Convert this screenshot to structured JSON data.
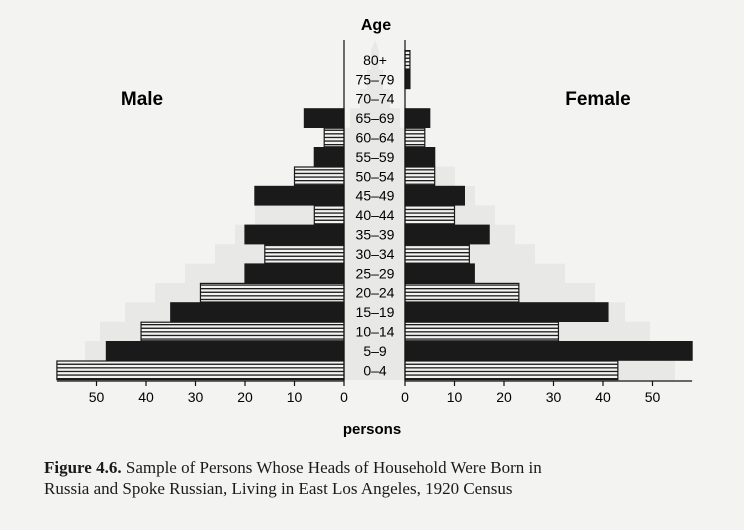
{
  "chart_data": {
    "type": "bar",
    "orientation": "horizontal",
    "subtype": "population-pyramid",
    "center_label": "Age",
    "left_group_label": "Male",
    "right_group_label": "Female",
    "xlabel": "persons",
    "categories": [
      "0–4",
      "5–9",
      "10–14",
      "15–19",
      "20–24",
      "25–29",
      "30–34",
      "35–39",
      "40–44",
      "45–49",
      "50–54",
      "55–59",
      "60–64",
      "65–69",
      "70–74",
      "75–79",
      "80+"
    ],
    "series": [
      {
        "name": "Male",
        "values": [
          58,
          48,
          41,
          35,
          29,
          20,
          16,
          20,
          6,
          18,
          10,
          6,
          4,
          8,
          0,
          0,
          0
        ]
      },
      {
        "name": "Female",
        "values": [
          43,
          58,
          31,
          41,
          23,
          14,
          13,
          17,
          10,
          12,
          6,
          6,
          4,
          5,
          0,
          1,
          1
        ]
      }
    ],
    "bar_fill_pattern": [
      "striped",
      "solid",
      "striped",
      "solid",
      "striped",
      "solid",
      "striped",
      "solid",
      "striped",
      "solid",
      "striped",
      "solid",
      "striped",
      "solid",
      "striped",
      "solid",
      "striped"
    ],
    "xlim": [
      0,
      58
    ],
    "xticks": [
      0,
      10,
      20,
      30,
      40,
      50
    ],
    "xtick_labels": [
      "0",
      "10",
      "20",
      "30",
      "40",
      "50"
    ],
    "colors": {
      "solid": "#1a1a1a",
      "striped_line": "#1a1a1a",
      "striped_bg": "#f3f3f1",
      "background_figure": "#dcdcda"
    }
  },
  "caption": {
    "figure_label": "Figure 4.6.",
    "line1": "Sample of Persons Whose Heads of Household Were Born in",
    "line2": "Russia and Spoke Russian, Living in East Los Angeles, 1920 Census"
  }
}
